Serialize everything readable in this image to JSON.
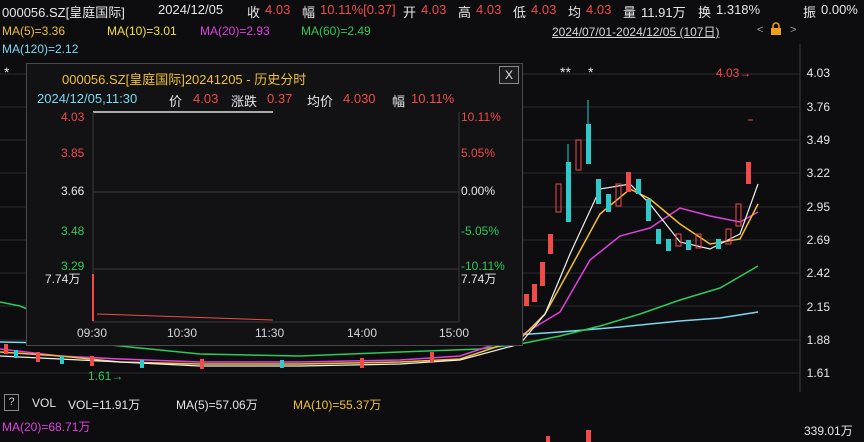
{
  "header": {
    "code": "000056.SZ[皇庭国际]",
    "date": "2024/12/05",
    "close_label": "收",
    "close_value": "4.03",
    "change_label": "幅",
    "change_value": "10.11%[0.37]",
    "open_label": "开",
    "open_value": "4.03",
    "high_label": "高",
    "high_value": "4.03",
    "low_label": "低",
    "low_value": "4.03",
    "avg_label": "均",
    "avg_value": "4.03",
    "vol_label": "量",
    "vol_value": "11.91万",
    "turnover_label": "换",
    "turnover_value": "1.318%",
    "amp_label": "振",
    "amp_value": "0.00%"
  },
  "ma": {
    "ma5": "MA(5)=3.36",
    "ma10": "MA(10)=3.01",
    "ma20": "MA(20)=2.93",
    "ma60": "MA(60)=2.49",
    "ma120": "MA(120)=2.12"
  },
  "range": {
    "label": "2024/07/01-2024/12/05 (107日)",
    "prev": "<",
    "next": ">"
  },
  "price_axis": [
    "4.03",
    "3.76",
    "3.49",
    "3.22",
    "2.95",
    "2.69",
    "2.42",
    "2.15",
    "1.88",
    "1.61"
  ],
  "markers": {
    "star1": "*",
    "stars2": "**",
    "star3": "*",
    "high_label": "4.03",
    "low_label": "1.61"
  },
  "popup": {
    "title": "000056.SZ[皇庭国际]20241205 - 历史分时",
    "close": "X",
    "time": "2024/12/05,11:30",
    "price_label": "价",
    "price_value": "4.03",
    "chg_label": "涨跌",
    "chg_value": "0.37",
    "avg_label": "均价",
    "avg_value": "4.030",
    "pct_label": "幅",
    "pct_value": "10.11%",
    "left_ticks": [
      "4.03",
      "3.85",
      "3.66",
      "3.48",
      "3.29"
    ],
    "right_ticks": [
      "10.11%",
      "5.05%",
      "0.00%",
      "-5.05%",
      "-10.11%"
    ],
    "vol_left": "7.74万",
    "vol_right": "7.74万",
    "time_ticks": [
      "09:30",
      "10:30",
      "11:30",
      "14:00",
      "15:00"
    ]
  },
  "volume": {
    "help": "?",
    "label": "VOL",
    "vol": "VOL=11.91万",
    "ma5": "MA(5)=57.06万",
    "ma10": "MA(10)=55.37万",
    "ma20": "MA(20)=68.71万",
    "axis_value": "339.01万"
  },
  "colors": {
    "up": "#f04a4a",
    "down": "#2fc9c9",
    "ma5": "#f0f0f0",
    "ma10": "#f0c030",
    "ma20": "#e040e0",
    "ma60": "#2fc95a",
    "ma120": "#7ad8f0"
  }
}
